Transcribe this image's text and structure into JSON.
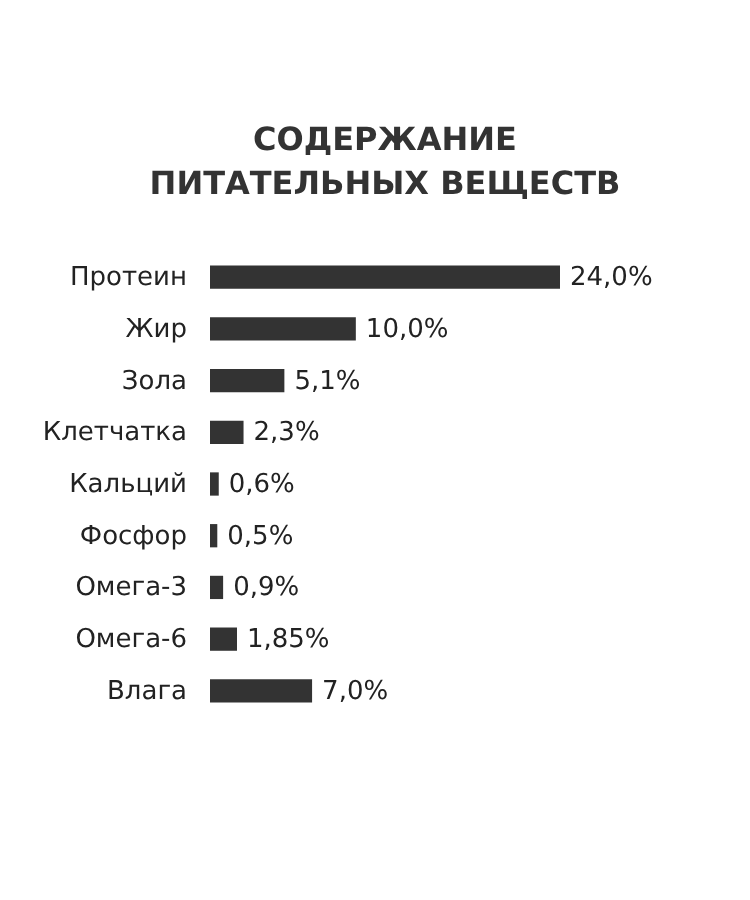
{
  "chart_data": {
    "type": "bar",
    "orientation": "horizontal",
    "title": "СОДЕРЖАНИЕ ПИТАТЕЛЬНЫХ ВЕЩЕСТВ",
    "categories": [
      "Протеин",
      "Жир",
      "Зола",
      "Клетчатка",
      "Кальций",
      "Фосфор",
      "Омега-3",
      "Омега-6",
      "Влага"
    ],
    "values": [
      24.0,
      10.0,
      5.1,
      2.3,
      0.6,
      0.5,
      0.9,
      1.85,
      7.0
    ],
    "value_labels": [
      "24,0%",
      "10,0%",
      "5,1%",
      "2,3%",
      "0,6%",
      "0,5%",
      "0,9%",
      "1,85%",
      "7,0%"
    ],
    "color": "#333333",
    "grid": false
  }
}
